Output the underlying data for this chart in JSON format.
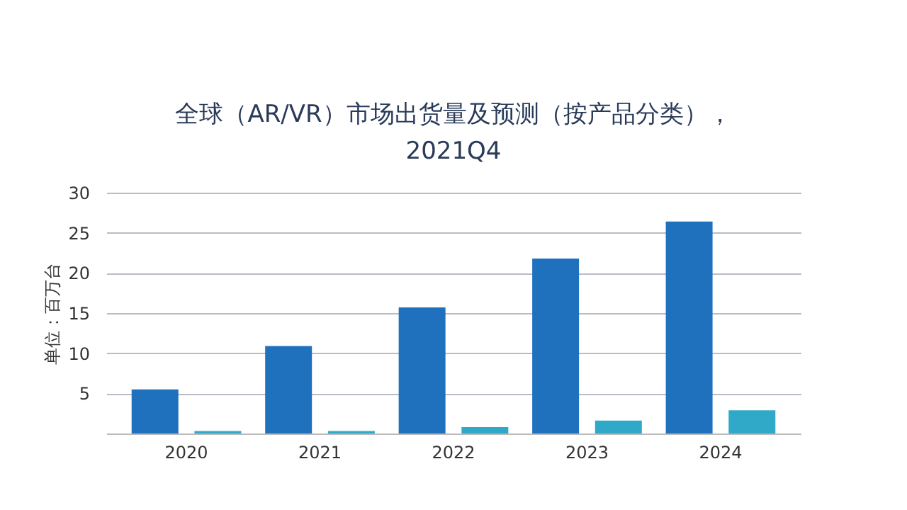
{
  "chart_data": {
    "type": "bar",
    "title": [
      "全球（AR/VR）市场出货量及预测（按产品分类），",
      "2021Q4"
    ],
    "ylabel": "单位：百万台",
    "categories": [
      "2020",
      "2021",
      "2022",
      "2023",
      "2024"
    ],
    "series": [
      {
        "color": "#1f70bd",
        "values": [
          5.5,
          10.9,
          15.7,
          21.8,
          26.4
        ]
      },
      {
        "color": "#30a9c9",
        "values": [
          0.3,
          0.3,
          0.8,
          1.6,
          2.9
        ]
      }
    ],
    "ylim": [
      0,
      30
    ],
    "yticks": [
      {
        "value": 0,
        "label": null
      },
      5,
      10,
      15,
      20,
      25,
      30
    ],
    "grid": "y"
  }
}
